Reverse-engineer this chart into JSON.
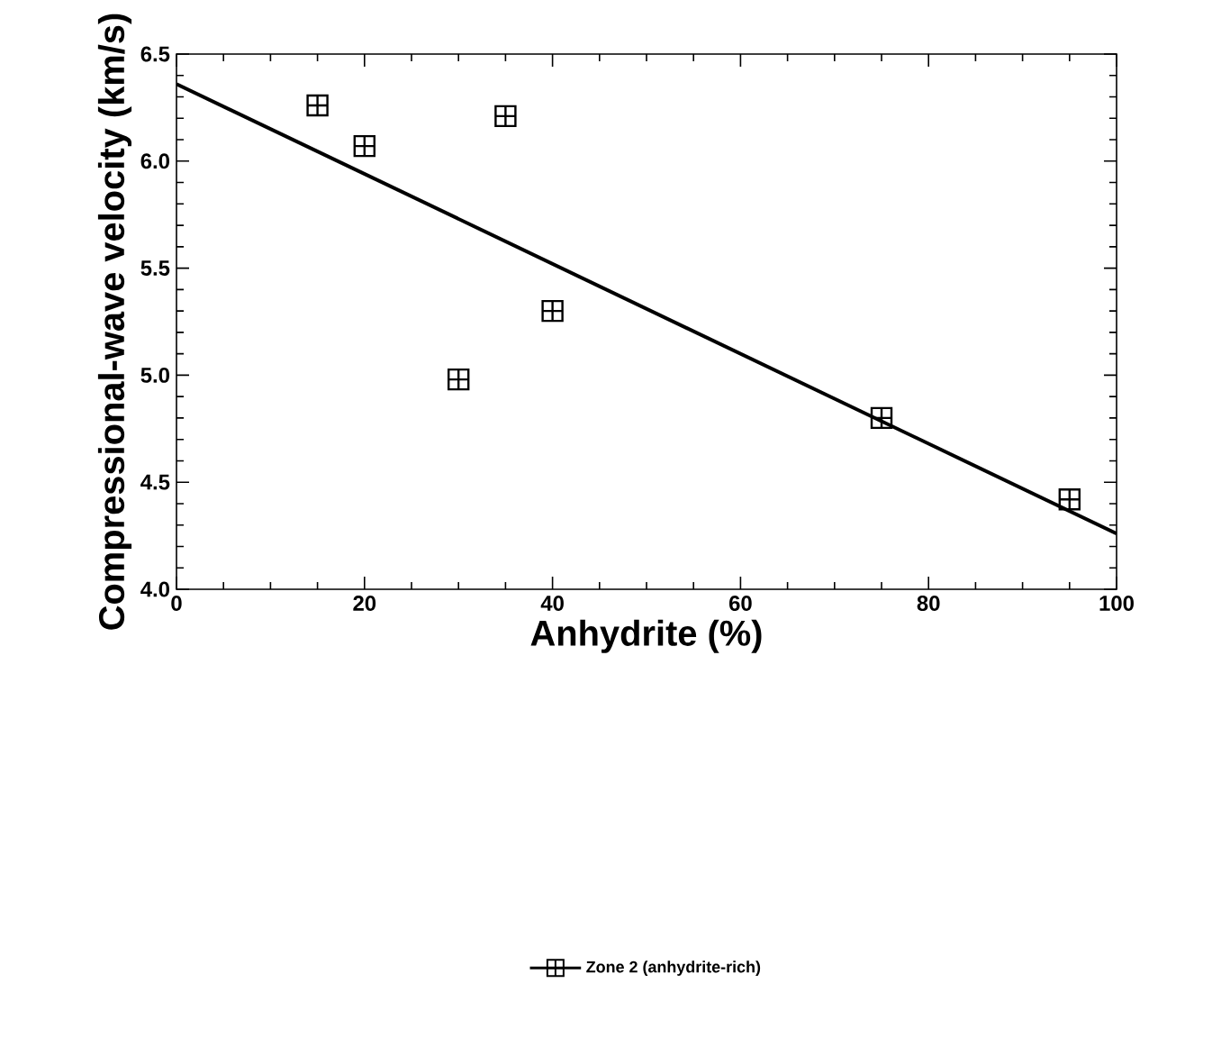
{
  "chart_data": {
    "type": "scatter",
    "xlabel": "Anhydrite (%)",
    "ylabel": "Compressional-wave velocity (km/s)",
    "xlim": [
      0,
      100
    ],
    "ylim": [
      4.0,
      6.5
    ],
    "xticks": [
      0,
      20,
      40,
      60,
      80,
      100
    ],
    "yticks": [
      {
        "value": 4.0,
        "label": "4.0"
      },
      {
        "value": 4.5,
        "label": "4.5"
      },
      {
        "value": 5.0,
        "label": "5.0"
      },
      {
        "value": 5.5,
        "label": "5.5"
      },
      {
        "value": 6.0,
        "label": "6.0"
      },
      {
        "value": 6.5,
        "label": "6.5"
      }
    ],
    "grid": false,
    "legend": "bottom",
    "series": [
      {
        "name": "Zone  2  (anhydrite-rich)",
        "color": "#000000",
        "marker": "square",
        "x": [
          15,
          20,
          30,
          35,
          40,
          75,
          95
        ],
        "values": [
          6.26,
          6.07,
          4.98,
          6.21,
          5.3,
          4.8,
          4.42
        ]
      },
      {
        "type": "line",
        "marker": "none",
        "line_style": "solid",
        "color": "#000000",
        "x": [
          0,
          100
        ],
        "values": [
          6.36,
          4.26
        ]
      }
    ]
  }
}
